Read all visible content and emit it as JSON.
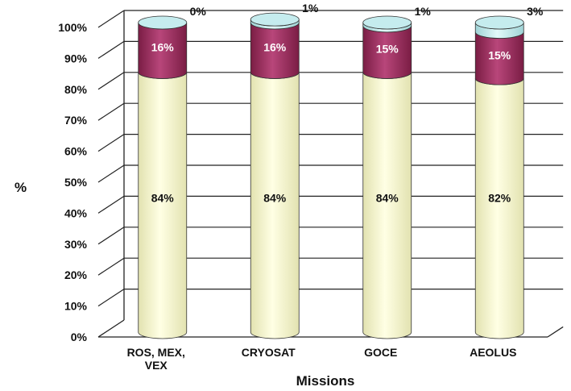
{
  "chart_data": {
    "type": "bar",
    "stacked": true,
    "three_d": true,
    "categories": [
      [
        "ROS, MEX,",
        "VEX"
      ],
      [
        "CRYOSAT"
      ],
      [
        "GOCE"
      ],
      [
        "AEOLUS"
      ]
    ],
    "series": [
      {
        "values": [
          84,
          84,
          84,
          82
        ],
        "labels": [
          "84%",
          "84%",
          "84%",
          "82%"
        ],
        "color": "#fbfbcf"
      },
      {
        "values": [
          16,
          16,
          15,
          15
        ],
        "labels": [
          "16%",
          "16%",
          "15%",
          "15%"
        ],
        "color": "#9e2a5c"
      },
      {
        "values": [
          0,
          1,
          1,
          3
        ],
        "labels": [
          "0%",
          "1%",
          "1%",
          "3%"
        ],
        "color": "#c5ecee"
      }
    ],
    "yticks": [
      "0%",
      "10%",
      "20%",
      "30%",
      "40%",
      "50%",
      "60%",
      "70%",
      "80%",
      "90%",
      "100%"
    ],
    "ylim": [
      0,
      100
    ],
    "xlabel": "Missions",
    "ylabel": "%",
    "grid": true,
    "legend": "none"
  }
}
